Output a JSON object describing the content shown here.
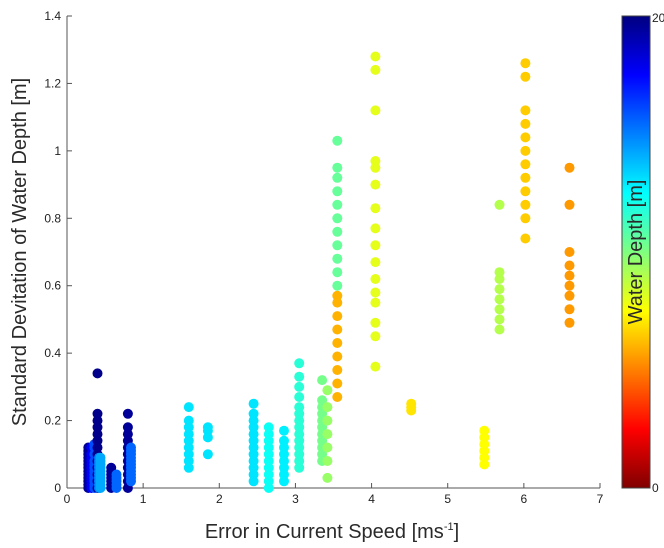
{
  "chart_data": {
    "type": "scatter",
    "xlabel": "Error in Current Speed  [ms",
    "xlabel_sup": "-1",
    "xlabel_end": "]",
    "ylabel": "Standard Devitation of Water Depth [m]",
    "xlim": [
      0,
      7
    ],
    "ylim": [
      0,
      1.4
    ],
    "xticks": [
      "0",
      "1",
      "2",
      "3",
      "4",
      "5",
      "6",
      "7"
    ],
    "yticks": [
      "0",
      "0.2",
      "0.4",
      "0.6",
      "0.8",
      "1",
      "1.2",
      "1.4"
    ],
    "colorbar": {
      "label": "Water Depth [m]",
      "min_label": "0",
      "max_label": "20",
      "range": [
        0,
        20
      ],
      "colormap": "jet"
    },
    "groups": [
      {
        "x": 0.28,
        "depth": 19.5,
        "y": [
          0.0,
          0.01,
          0.02,
          0.03,
          0.04,
          0.05,
          0.06,
          0.07,
          0.08,
          0.09,
          0.1,
          0.11,
          0.12
        ]
      },
      {
        "x": 0.32,
        "depth": 17.5,
        "y": [
          0.0,
          0.01,
          0.02,
          0.03,
          0.04,
          0.05,
          0.06,
          0.07,
          0.08,
          0.09,
          0.1,
          0.12
        ]
      },
      {
        "x": 0.36,
        "depth": 16.0,
        "y": [
          0.0,
          0.01,
          0.02,
          0.03,
          0.04,
          0.05,
          0.06,
          0.07,
          0.08,
          0.1,
          0.12,
          0.13
        ]
      },
      {
        "x": 0.4,
        "depth": 19.8,
        "y": [
          0.0,
          0.02,
          0.04,
          0.06,
          0.08,
          0.1,
          0.12,
          0.14,
          0.16,
          0.18,
          0.2,
          0.22,
          0.34
        ]
      },
      {
        "x": 0.42,
        "depth": 15.0,
        "y": [
          0.0,
          0.01,
          0.02,
          0.03,
          0.04,
          0.05,
          0.06,
          0.07,
          0.08,
          0.09
        ]
      },
      {
        "x": 0.44,
        "depth": 14.2,
        "y": [
          0.0,
          0.01,
          0.02,
          0.03,
          0.04,
          0.05,
          0.06,
          0.07,
          0.08,
          0.09
        ]
      },
      {
        "x": 0.58,
        "depth": 19.5,
        "y": [
          0.0,
          0.01,
          0.02,
          0.03,
          0.04,
          0.05,
          0.06
        ]
      },
      {
        "x": 0.65,
        "depth": 15.5,
        "y": [
          0.0,
          0.01,
          0.02,
          0.03,
          0.04
        ]
      },
      {
        "x": 0.8,
        "depth": 19.5,
        "y": [
          0.0,
          0.02,
          0.04,
          0.06,
          0.08,
          0.1,
          0.12,
          0.14,
          0.16,
          0.18,
          0.22
        ]
      },
      {
        "x": 0.84,
        "depth": 15.5,
        "y": [
          0.02,
          0.03,
          0.04,
          0.05,
          0.06,
          0.07,
          0.08,
          0.09,
          0.1,
          0.11,
          0.12
        ]
      },
      {
        "x": 1.6,
        "depth": 13.0,
        "y": [
          0.06,
          0.08,
          0.1,
          0.12,
          0.14,
          0.16,
          0.18,
          0.2,
          0.24
        ]
      },
      {
        "x": 1.85,
        "depth": 13.0,
        "y": [
          0.1,
          0.15,
          0.17,
          0.18
        ]
      },
      {
        "x": 2.45,
        "depth": 13.0,
        "y": [
          0.02,
          0.04,
          0.06,
          0.08,
          0.1,
          0.12,
          0.14,
          0.16,
          0.18,
          0.2,
          0.22,
          0.25
        ]
      },
      {
        "x": 2.65,
        "depth": 12.3,
        "y": [
          0.0,
          0.02,
          0.04,
          0.06,
          0.08,
          0.1,
          0.12,
          0.14,
          0.16,
          0.18
        ]
      },
      {
        "x": 2.85,
        "depth": 12.8,
        "y": [
          0.02,
          0.04,
          0.06,
          0.08,
          0.1,
          0.12,
          0.14,
          0.17
        ]
      },
      {
        "x": 3.05,
        "depth": 11.7,
        "y": [
          0.06,
          0.08,
          0.1,
          0.12,
          0.14,
          0.16,
          0.18,
          0.2,
          0.22,
          0.24,
          0.27,
          0.3,
          0.33,
          0.37
        ]
      },
      {
        "x": 3.35,
        "depth": 10.2,
        "y": [
          0.08,
          0.1,
          0.12,
          0.14,
          0.16,
          0.18,
          0.2,
          0.22,
          0.24,
          0.26,
          0.32
        ]
      },
      {
        "x": 3.42,
        "depth": 9.5,
        "y": [
          0.03,
          0.08,
          0.12,
          0.16,
          0.2,
          0.24,
          0.29
        ]
      },
      {
        "x": 3.55,
        "depth": 10.5,
        "y": [
          0.6,
          0.64,
          0.68,
          0.72,
          0.76,
          0.8,
          0.84,
          0.88,
          0.92,
          0.95,
          1.03
        ]
      },
      {
        "x": 3.55,
        "depth": 6.0,
        "y": [
          0.27,
          0.31,
          0.35,
          0.39,
          0.43,
          0.47,
          0.51,
          0.55,
          0.57
        ]
      },
      {
        "x": 4.05,
        "depth": 8.0,
        "y": [
          0.36,
          0.45,
          0.49,
          0.55,
          0.58,
          0.62,
          0.67,
          0.72,
          0.77,
          0.83,
          0.9,
          0.95,
          0.97,
          1.12,
          1.24,
          1.28
        ]
      },
      {
        "x": 4.52,
        "depth": 7.0,
        "y": [
          0.23,
          0.24,
          0.25
        ]
      },
      {
        "x": 5.48,
        "depth": 7.5,
        "y": [
          0.07,
          0.09,
          0.11,
          0.13,
          0.15,
          0.17
        ]
      },
      {
        "x": 5.68,
        "depth": 9.0,
        "y": [
          0.47,
          0.5,
          0.53,
          0.56,
          0.59,
          0.62,
          0.64,
          0.84
        ]
      },
      {
        "x": 6.02,
        "depth": 6.5,
        "y": [
          0.74,
          0.8,
          0.84,
          0.88,
          0.92,
          0.96,
          1.0,
          1.04,
          1.08,
          1.12,
          1.22,
          1.26
        ]
      },
      {
        "x": 6.6,
        "depth": 5.5,
        "y": [
          0.49,
          0.53,
          0.57,
          0.6,
          0.63,
          0.66,
          0.7,
          0.84,
          0.95
        ]
      }
    ]
  }
}
